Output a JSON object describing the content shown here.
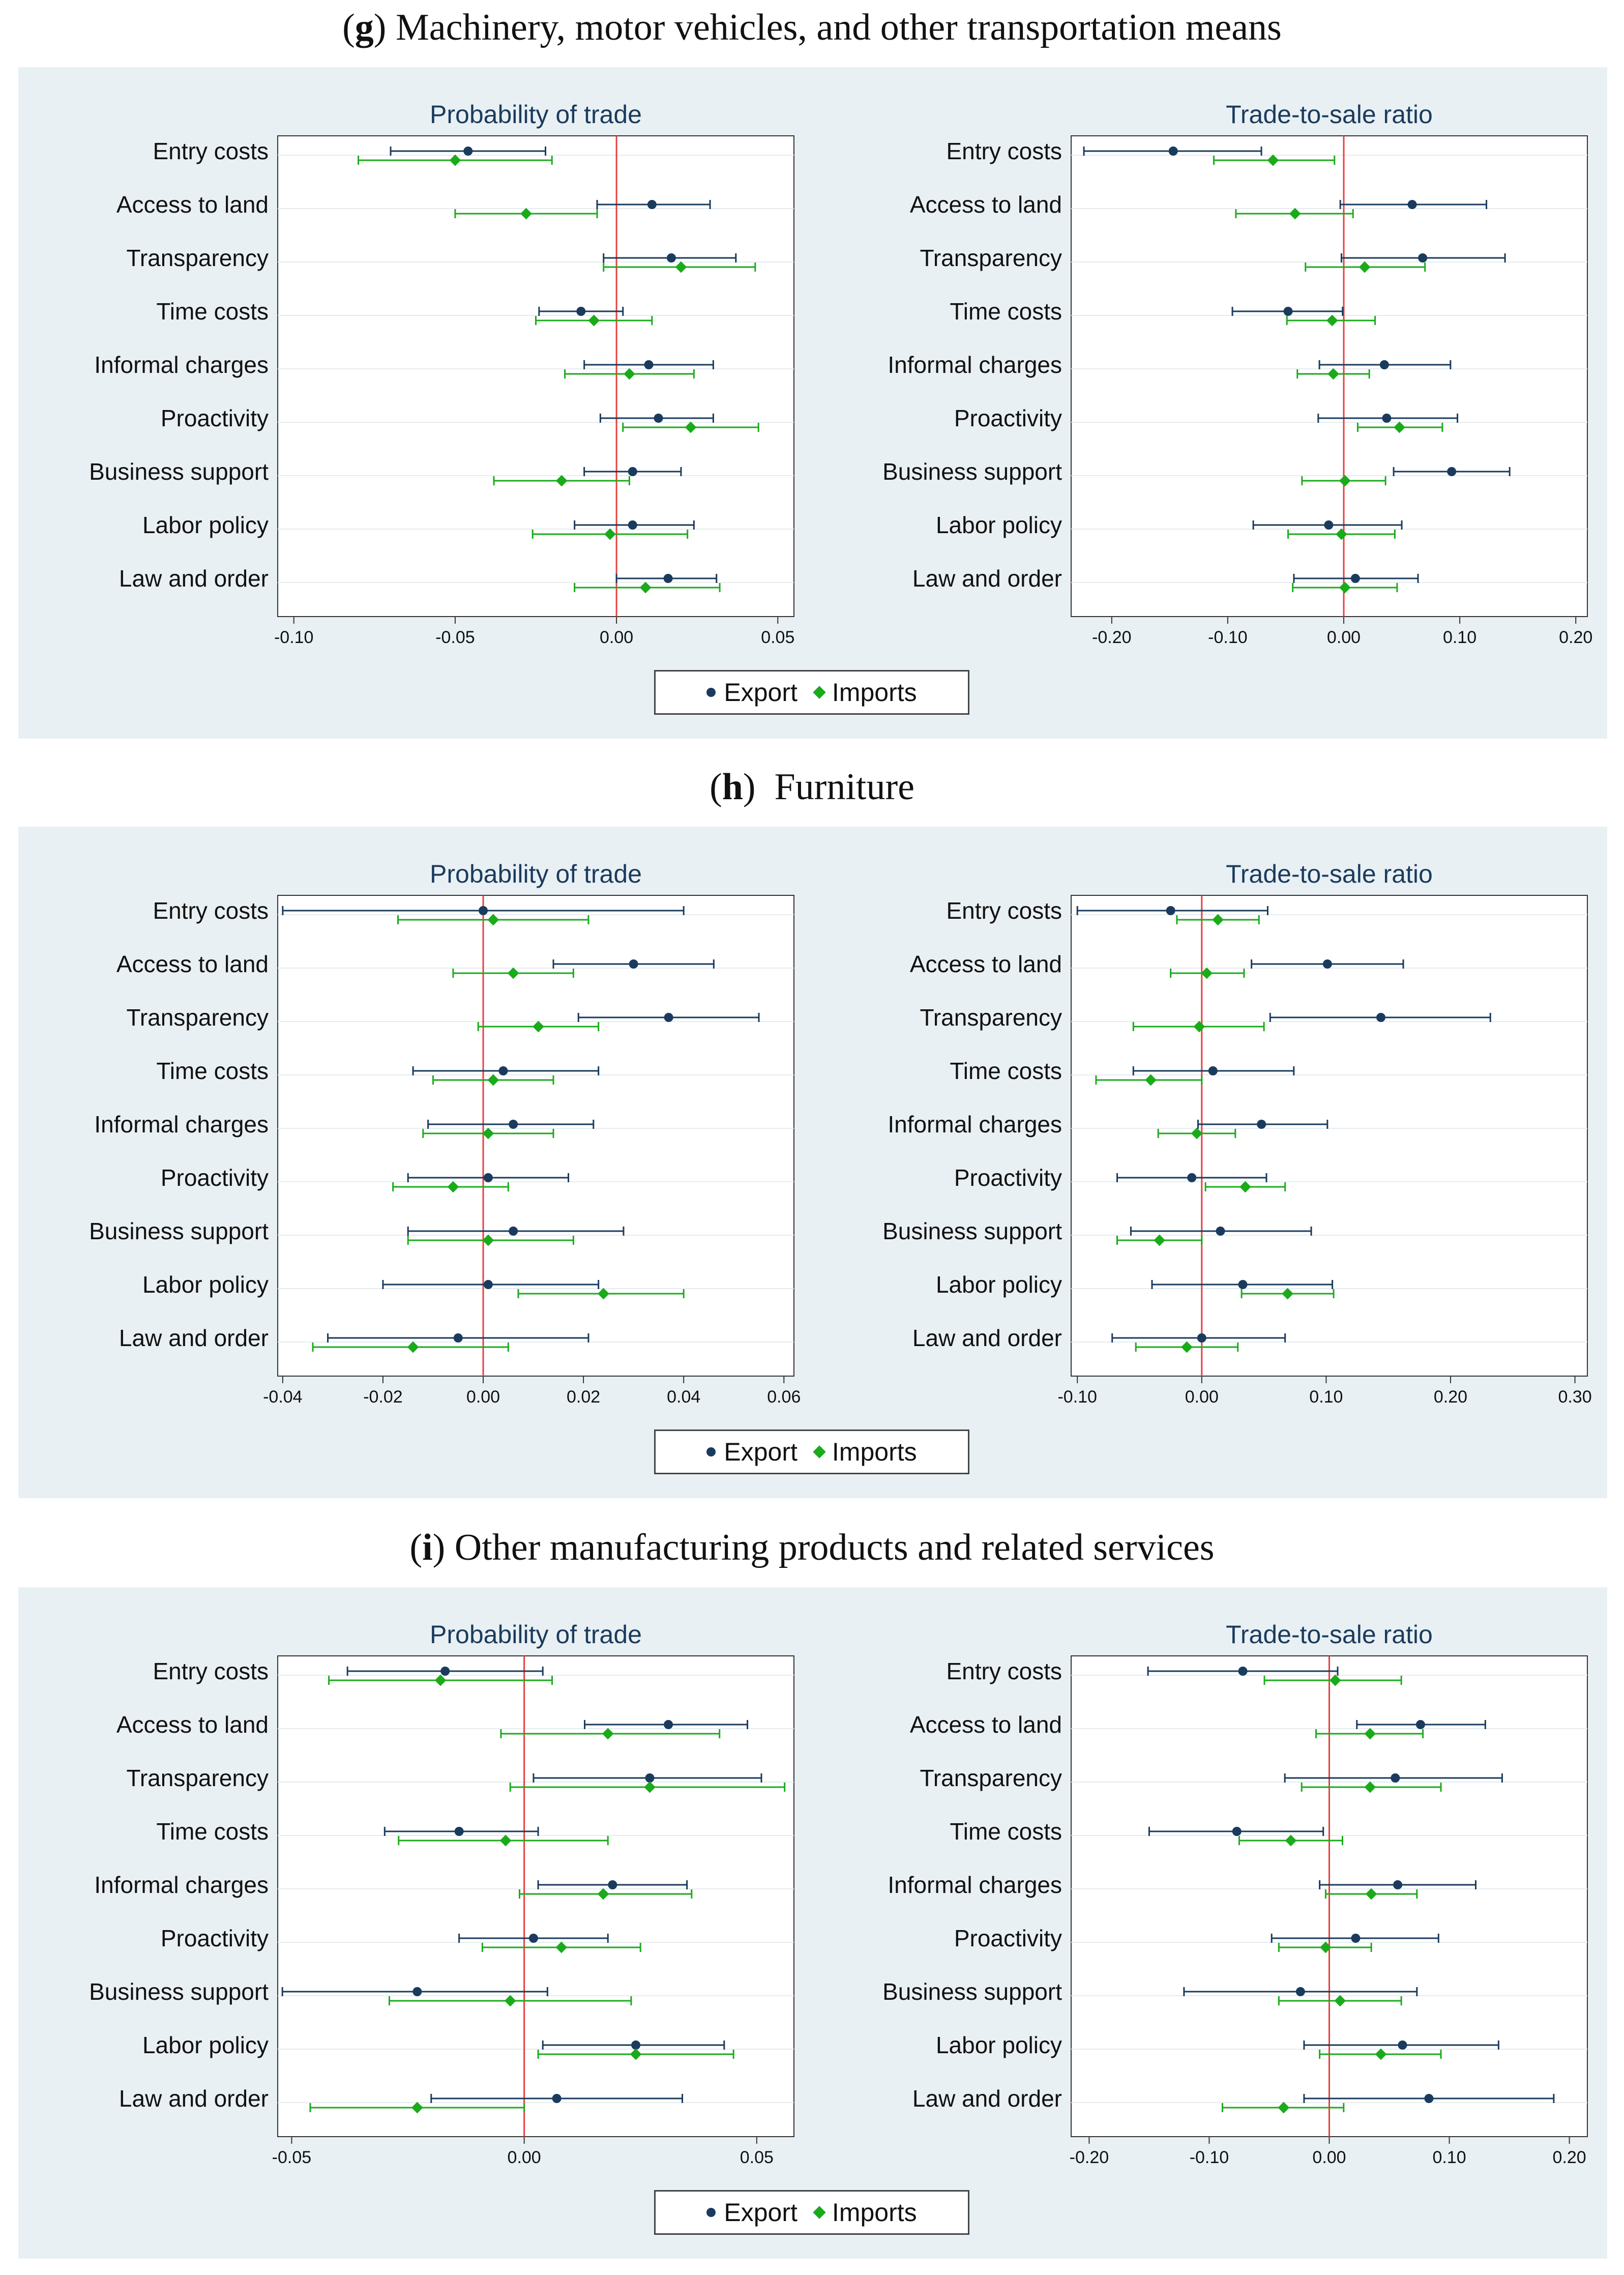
{
  "colors": {
    "export": "#1a3b5e",
    "imports": "#1aab1a",
    "zero_line": "#e84040",
    "panel_bg": "#e9f0f3"
  },
  "legend": {
    "export_label": "Export",
    "imports_label": "Imports"
  },
  "figures": [
    {
      "caption_letter": "g",
      "caption_text": " Machinery, motor vehicles, and other transportation means"
    },
    {
      "caption_letter": "h",
      "caption_text": "  Furniture"
    },
    {
      "caption_letter": "i",
      "caption_text": " Other manufacturing products and related services"
    }
  ],
  "chart_data": [
    {
      "type": "scatter",
      "figure": "g",
      "title": "Probability of trade",
      "categories": [
        "Entry costs",
        "Access to land",
        "Transparency",
        "Time costs",
        "Informal charges",
        "Proactivity",
        "Business support",
        "Labor policy",
        "Law and order"
      ],
      "xlim": [
        -0.105,
        0.055
      ],
      "xticks": [
        -0.1,
        -0.05,
        0.0,
        0.05
      ],
      "xtick_labels": [
        "-0.10",
        "-0.05",
        "0.00",
        "0.05"
      ],
      "series": [
        {
          "name": "Export",
          "values": [
            -0.046,
            0.011,
            0.017,
            -0.011,
            0.01,
            0.013,
            0.005,
            0.005,
            0.016
          ],
          "ci_low": [
            -0.07,
            -0.006,
            -0.004,
            -0.024,
            -0.01,
            -0.005,
            -0.01,
            -0.013,
            0.0
          ],
          "ci_high": [
            -0.022,
            0.029,
            0.037,
            0.002,
            0.03,
            0.03,
            0.02,
            0.024,
            0.031
          ]
        },
        {
          "name": "Imports",
          "values": [
            -0.05,
            -0.028,
            0.02,
            -0.007,
            0.004,
            0.023,
            -0.017,
            -0.002,
            0.009
          ],
          "ci_low": [
            -0.08,
            -0.05,
            -0.004,
            -0.025,
            -0.016,
            0.002,
            -0.038,
            -0.026,
            -0.013
          ],
          "ci_high": [
            -0.02,
            -0.006,
            0.043,
            0.011,
            0.024,
            0.044,
            0.004,
            0.022,
            0.032
          ]
        }
      ]
    },
    {
      "type": "scatter",
      "figure": "g",
      "title": "Trade-to-sale ratio",
      "categories": [
        "Entry costs",
        "Access to land",
        "Transparency",
        "Time costs",
        "Informal charges",
        "Proactivity",
        "Business support",
        "Labor policy",
        "Law and order"
      ],
      "xlim": [
        -0.235,
        0.21
      ],
      "xticks": [
        -0.2,
        -0.1,
        0.0,
        0.1,
        0.2
      ],
      "xtick_labels": [
        "-0.20",
        "-0.10",
        "0.00",
        "0.10",
        "0.20"
      ],
      "series": [
        {
          "name": "Export",
          "values": [
            -0.147,
            0.059,
            0.068,
            -0.048,
            0.035,
            0.037,
            0.093,
            -0.013,
            0.01
          ],
          "ci_low": [
            -0.224,
            -0.003,
            -0.002,
            -0.096,
            -0.021,
            -0.022,
            0.043,
            -0.078,
            -0.043
          ],
          "ci_high": [
            -0.071,
            0.123,
            0.139,
            -0.001,
            0.092,
            0.098,
            0.143,
            0.05,
            0.064
          ]
        },
        {
          "name": "Imports",
          "values": [
            -0.061,
            -0.042,
            0.018,
            -0.01,
            -0.009,
            0.048,
            0.001,
            -0.002,
            0.001
          ],
          "ci_low": [
            -0.112,
            -0.093,
            -0.033,
            -0.049,
            -0.04,
            0.012,
            -0.036,
            -0.048,
            -0.044
          ],
          "ci_high": [
            -0.008,
            0.008,
            0.07,
            0.027,
            0.022,
            0.085,
            0.036,
            0.044,
            0.046
          ]
        }
      ]
    },
    {
      "type": "scatter",
      "figure": "h",
      "title": "Probability of trade",
      "categories": [
        "Entry costs",
        "Access to land",
        "Transparency",
        "Time costs",
        "Informal charges",
        "Proactivity",
        "Business support",
        "Labor policy",
        "Law and order"
      ],
      "xlim": [
        -0.041,
        0.062
      ],
      "xticks": [
        -0.04,
        -0.02,
        0.0,
        0.02,
        0.04,
        0.06
      ],
      "xtick_labels": [
        "-0.04",
        "-0.02",
        "0.00",
        "0.02",
        "0.04",
        "0.06"
      ],
      "series": [
        {
          "name": "Export",
          "values": [
            0.0,
            0.03,
            0.037,
            0.004,
            0.006,
            0.001,
            0.006,
            0.001,
            -0.005
          ],
          "ci_low": [
            -0.04,
            0.014,
            0.019,
            -0.014,
            -0.011,
            -0.015,
            -0.015,
            -0.02,
            -0.031
          ],
          "ci_high": [
            0.04,
            0.046,
            0.055,
            0.023,
            0.022,
            0.017,
            0.028,
            0.023,
            0.021
          ]
        },
        {
          "name": "Imports",
          "values": [
            0.002,
            0.006,
            0.011,
            0.002,
            0.001,
            -0.006,
            0.001,
            0.024,
            -0.014
          ],
          "ci_low": [
            -0.017,
            -0.006,
            -0.001,
            -0.01,
            -0.012,
            -0.018,
            -0.015,
            0.007,
            -0.034
          ],
          "ci_high": [
            0.021,
            0.018,
            0.023,
            0.014,
            0.014,
            0.005,
            0.018,
            0.04,
            0.005
          ]
        }
      ]
    },
    {
      "type": "scatter",
      "figure": "h",
      "title": "Trade-to-sale ratio",
      "categories": [
        "Entry costs",
        "Access to land",
        "Transparency",
        "Time costs",
        "Informal charges",
        "Proactivity",
        "Business support",
        "Labor policy",
        "Law and order"
      ],
      "xlim": [
        -0.105,
        0.31
      ],
      "xticks": [
        -0.1,
        0.0,
        0.1,
        0.2,
        0.3
      ],
      "xtick_labels": [
        "-0.10",
        "0.00",
        "0.10",
        "0.20",
        "0.30"
      ],
      "series": [
        {
          "name": "Export",
          "values": [
            -0.025,
            0.101,
            0.144,
            0.009,
            0.048,
            -0.008,
            0.015,
            0.033,
            0.0
          ],
          "ci_low": [
            -0.1,
            0.04,
            0.055,
            -0.055,
            -0.003,
            -0.068,
            -0.057,
            -0.04,
            -0.072
          ],
          "ci_high": [
            0.053,
            0.162,
            0.232,
            0.074,
            0.101,
            0.052,
            0.088,
            0.105,
            0.067
          ]
        },
        {
          "name": "Imports",
          "values": [
            0.013,
            0.004,
            -0.002,
            -0.041,
            -0.004,
            0.035,
            -0.034,
            0.069,
            -0.012
          ],
          "ci_low": [
            -0.02,
            -0.025,
            -0.055,
            -0.085,
            -0.035,
            0.003,
            -0.068,
            0.032,
            -0.053
          ],
          "ci_high": [
            0.046,
            0.034,
            0.05,
            0.0,
            0.027,
            0.067,
            0.0,
            0.106,
            0.029
          ]
        }
      ]
    },
    {
      "type": "scatter",
      "figure": "i",
      "title": "Probability of trade",
      "categories": [
        "Entry costs",
        "Access to land",
        "Transparency",
        "Time costs",
        "Informal charges",
        "Proactivity",
        "Business support",
        "Labor policy",
        "Law and order"
      ],
      "xlim": [
        -0.053,
        0.058
      ],
      "xticks": [
        -0.05,
        0.0,
        0.05
      ],
      "xtick_labels": [
        "-0.05",
        "0.00",
        "0.05"
      ],
      "series": [
        {
          "name": "Export",
          "values": [
            -0.017,
            0.031,
            0.027,
            -0.014,
            0.019,
            0.002,
            -0.023,
            0.024,
            0.007
          ],
          "ci_low": [
            -0.038,
            0.013,
            0.002,
            -0.03,
            0.003,
            -0.014,
            -0.052,
            0.004,
            -0.02
          ],
          "ci_high": [
            0.004,
            0.048,
            0.051,
            0.003,
            0.035,
            0.018,
            0.005,
            0.043,
            0.034
          ]
        },
        {
          "name": "Imports",
          "values": [
            -0.018,
            0.018,
            0.027,
            -0.004,
            0.017,
            0.008,
            -0.003,
            0.024,
            -0.023
          ],
          "ci_low": [
            -0.042,
            -0.005,
            -0.003,
            -0.027,
            -0.001,
            -0.009,
            -0.029,
            0.003,
            -0.046
          ],
          "ci_high": [
            0.006,
            0.042,
            0.056,
            0.018,
            0.036,
            0.025,
            0.023,
            0.045,
            0.0
          ]
        }
      ]
    },
    {
      "type": "scatter",
      "figure": "i",
      "title": "Trade-to-sale ratio",
      "categories": [
        "Entry costs",
        "Access to land",
        "Transparency",
        "Time costs",
        "Informal charges",
        "Proactivity",
        "Business support",
        "Labor policy",
        "Law and order"
      ],
      "xlim": [
        -0.215,
        0.215
      ],
      "xticks": [
        -0.2,
        -0.1,
        0.0,
        0.1,
        0.2
      ],
      "xtick_labels": [
        "-0.20",
        "-0.10",
        "0.00",
        "0.10",
        "0.20"
      ],
      "series": [
        {
          "name": "Export",
          "values": [
            -0.072,
            0.076,
            0.055,
            -0.077,
            0.057,
            0.022,
            -0.024,
            0.061,
            0.083
          ],
          "ci_low": [
            -0.151,
            0.023,
            -0.037,
            -0.15,
            -0.008,
            -0.048,
            -0.121,
            -0.021,
            -0.021
          ],
          "ci_high": [
            0.007,
            0.13,
            0.144,
            -0.005,
            0.122,
            0.091,
            0.073,
            0.141,
            0.187
          ]
        },
        {
          "name": "Imports",
          "values": [
            0.005,
            0.034,
            0.034,
            -0.032,
            0.035,
            -0.003,
            0.009,
            0.043,
            -0.038
          ],
          "ci_low": [
            -0.054,
            -0.011,
            -0.023,
            -0.075,
            -0.003,
            -0.042,
            -0.042,
            -0.008,
            -0.089
          ],
          "ci_high": [
            0.06,
            0.078,
            0.093,
            0.011,
            0.073,
            0.035,
            0.06,
            0.093,
            0.012
          ]
        }
      ]
    }
  ]
}
